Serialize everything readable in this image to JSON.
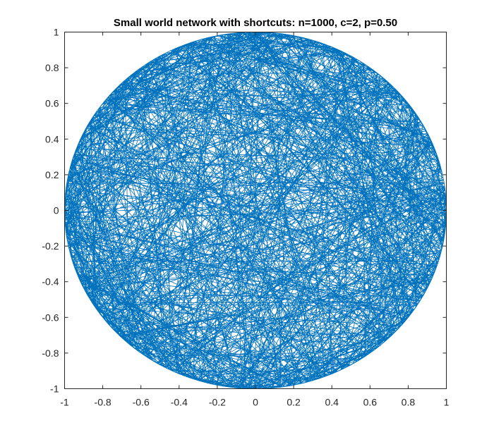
{
  "chart_data": {
    "type": "network",
    "title": "Small world network with shortcuts: n=1000, c=2, p=0.50",
    "network": {
      "n": 1000,
      "c": 2,
      "p": 0.5
    },
    "xlabel": "",
    "ylabel": "",
    "xlim": [
      -1,
      1
    ],
    "ylim": [
      -1,
      1
    ],
    "x_ticks": [
      -1,
      -0.8,
      -0.6,
      -0.4,
      -0.2,
      0,
      0.2,
      0.4,
      0.6,
      0.8,
      1
    ],
    "x_tick_labels": [
      "-1",
      "-0.8",
      "-0.6",
      "-0.4",
      "-0.2",
      "0",
      "0.2",
      "0.4",
      "0.6",
      "0.8",
      "1"
    ],
    "y_ticks": [
      1,
      0.8,
      0.6,
      0.4,
      0.2,
      0,
      -0.2,
      -0.4,
      -0.6,
      -0.8,
      -1
    ],
    "y_tick_labels": [
      "1",
      "0.8",
      "0.6",
      "0.4",
      "0.2",
      "0",
      "-0.2",
      "-0.4",
      "-0.6",
      "-0.8",
      "-1"
    ],
    "grid": false,
    "legend": "none",
    "edge_color": "#0072BD",
    "axis_color": "#262626"
  }
}
